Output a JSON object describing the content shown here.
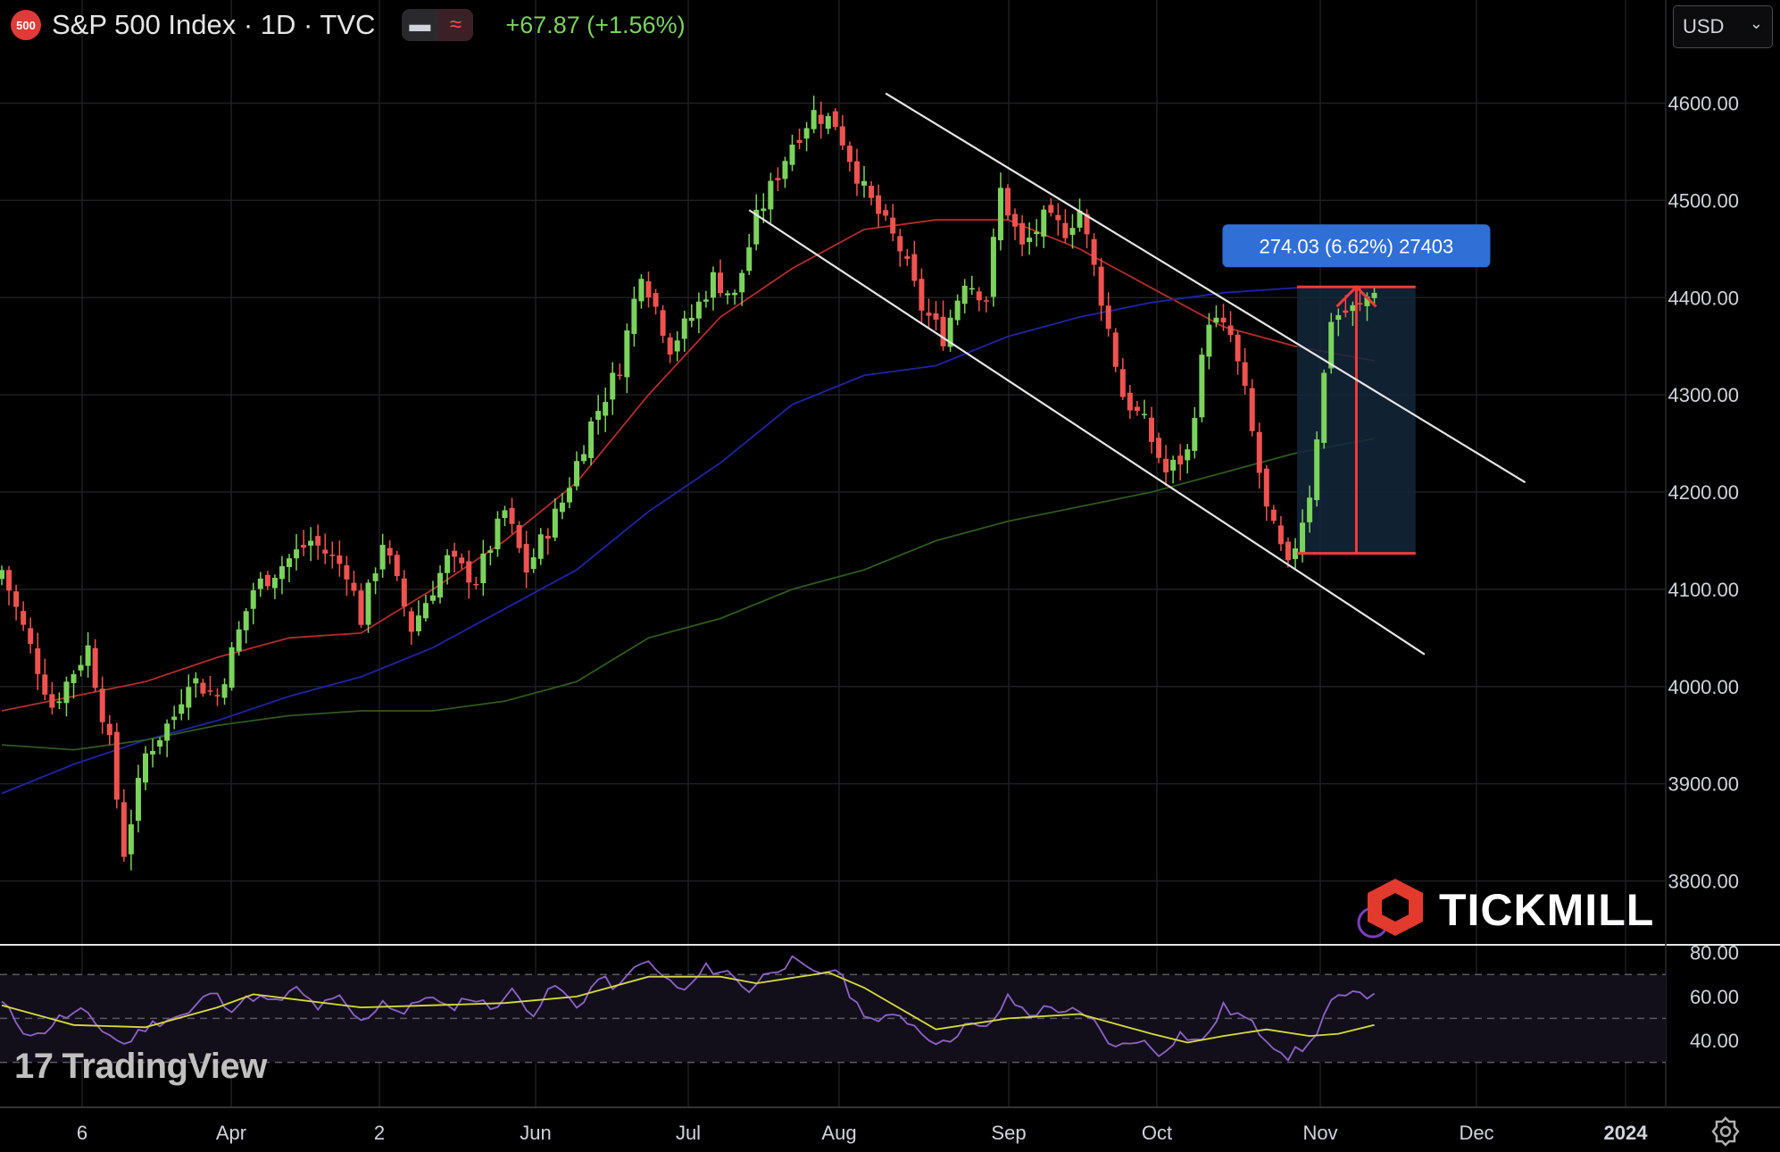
{
  "header": {
    "badge": "500",
    "symbol": "S&P 500 Index · 1D · TVC",
    "toggle_a": "▬",
    "toggle_b": "≈",
    "change": "+67.87 (+1.56%)"
  },
  "currency": {
    "label": "USD",
    "chevron": "⌄"
  },
  "measure": {
    "label": "274.03 (6.62%) 27403"
  },
  "watermarks": {
    "tradingview": "TradingView",
    "tradingview_logo": "17",
    "tickmill": "TICKMILL"
  },
  "icons": {
    "settings": "settings-gear-icon"
  },
  "colors": {
    "background": "#000000",
    "grid": "#1f1f23",
    "up": "#7bd35d",
    "down": "#ef5350",
    "ma_red": "#b72c2c",
    "ma_blue": "#1f24a6",
    "ma_green": "#2f5a1f",
    "rsi": "#8e62c8",
    "rsi_signal": "#d9db3d",
    "channel": "#e6e6e6",
    "measure_fill": "#13273b",
    "measure_line": "#f23a3a",
    "label_bg": "#2f6fd6"
  },
  "chart_data": [
    {
      "type": "candlestick",
      "title": "S&P 500 Index · 1D · TVC",
      "price_ticks": [
        "4600.00",
        "4500.00",
        "4400.00",
        "4300.00",
        "4200.00",
        "4100.00",
        "4000.00",
        "3900.00",
        "3800.00"
      ],
      "ylim": [
        3740,
        4650
      ],
      "time_ticks": [
        "6",
        "Apr",
        "2",
        "Jun",
        "Jul",
        "Aug",
        "Sep",
        "Oct",
        "Nov",
        "Dec",
        "2024"
      ],
      "keypoints": [
        {
          "i": 0,
          "c": 4120
        },
        {
          "i": 7,
          "c": 3980
        },
        {
          "i": 12,
          "c": 4040
        },
        {
          "i": 15,
          "c": 3940
        },
        {
          "i": 17,
          "c": 3830
        },
        {
          "i": 20,
          "c": 3930
        },
        {
          "i": 24,
          "c": 3970
        },
        {
          "i": 26,
          "c": 4010
        },
        {
          "i": 30,
          "c": 3990
        },
        {
          "i": 35,
          "c": 4100
        },
        {
          "i": 43,
          "c": 4150
        },
        {
          "i": 48,
          "c": 4120
        },
        {
          "i": 50,
          "c": 4070
        },
        {
          "i": 53,
          "c": 4150
        },
        {
          "i": 57,
          "c": 4060
        },
        {
          "i": 62,
          "c": 4130
        },
        {
          "i": 66,
          "c": 4110
        },
        {
          "i": 70,
          "c": 4180
        },
        {
          "i": 73,
          "c": 4120
        },
        {
          "i": 78,
          "c": 4190
        },
        {
          "i": 82,
          "c": 4270
        },
        {
          "i": 86,
          "c": 4330
        },
        {
          "i": 89,
          "c": 4430
        },
        {
          "i": 93,
          "c": 4350
        },
        {
          "i": 96,
          "c": 4380
        },
        {
          "i": 99,
          "c": 4420
        },
        {
          "i": 102,
          "c": 4400
        },
        {
          "i": 105,
          "c": 4480
        },
        {
          "i": 110,
          "c": 4560
        },
        {
          "i": 113,
          "c": 4590
        },
        {
          "i": 116,
          "c": 4580
        },
        {
          "i": 120,
          "c": 4510
        },
        {
          "i": 125,
          "c": 4450
        },
        {
          "i": 128,
          "c": 4390
        },
        {
          "i": 131,
          "c": 4360
        },
        {
          "i": 134,
          "c": 4420
        },
        {
          "i": 137,
          "c": 4400
        },
        {
          "i": 139,
          "c": 4510
        },
        {
          "i": 142,
          "c": 4450
        },
        {
          "i": 145,
          "c": 4480
        },
        {
          "i": 148,
          "c": 4470
        },
        {
          "i": 150,
          "c": 4490
        },
        {
          "i": 153,
          "c": 4400
        },
        {
          "i": 156,
          "c": 4300
        },
        {
          "i": 159,
          "c": 4270
        },
        {
          "i": 162,
          "c": 4220
        },
        {
          "i": 165,
          "c": 4240
        },
        {
          "i": 168,
          "c": 4380
        },
        {
          "i": 171,
          "c": 4360
        },
        {
          "i": 173,
          "c": 4300
        },
        {
          "i": 176,
          "c": 4180
        },
        {
          "i": 179,
          "c": 4120
        },
        {
          "i": 182,
          "c": 4200
        },
        {
          "i": 185,
          "c": 4380
        },
        {
          "i": 189,
          "c": 4390
        },
        {
          "i": 191,
          "c": 4411
        }
      ],
      "moving_averages": [
        {
          "name": "MA red",
          "color": "#b72c2c",
          "values": [
            {
              "i": 0,
              "v": 3975
            },
            {
              "i": 20,
              "v": 4005
            },
            {
              "i": 30,
              "v": 4030
            },
            {
              "i": 40,
              "v": 4050
            },
            {
              "i": 50,
              "v": 4055
            },
            {
              "i": 60,
              "v": 4100
            },
            {
              "i": 70,
              "v": 4150
            },
            {
              "i": 80,
              "v": 4210
            },
            {
              "i": 90,
              "v": 4300
            },
            {
              "i": 100,
              "v": 4380
            },
            {
              "i": 110,
              "v": 4430
            },
            {
              "i": 120,
              "v": 4470
            },
            {
              "i": 130,
              "v": 4480
            },
            {
              "i": 140,
              "v": 4480
            },
            {
              "i": 150,
              "v": 4450
            },
            {
              "i": 160,
              "v": 4410
            },
            {
              "i": 170,
              "v": 4370
            },
            {
              "i": 180,
              "v": 4350
            },
            {
              "i": 191,
              "v": 4335
            }
          ]
        },
        {
          "name": "MA blue",
          "color": "#1f24a6",
          "values": [
            {
              "i": 0,
              "v": 3890
            },
            {
              "i": 10,
              "v": 3920
            },
            {
              "i": 20,
              "v": 3945
            },
            {
              "i": 30,
              "v": 3965
            },
            {
              "i": 40,
              "v": 3990
            },
            {
              "i": 50,
              "v": 4010
            },
            {
              "i": 60,
              "v": 4040
            },
            {
              "i": 70,
              "v": 4080
            },
            {
              "i": 80,
              "v": 4120
            },
            {
              "i": 90,
              "v": 4180
            },
            {
              "i": 100,
              "v": 4230
            },
            {
              "i": 110,
              "v": 4290
            },
            {
              "i": 120,
              "v": 4320
            },
            {
              "i": 130,
              "v": 4330
            },
            {
              "i": 140,
              "v": 4360
            },
            {
              "i": 150,
              "v": 4380
            },
            {
              "i": 160,
              "v": 4395
            },
            {
              "i": 170,
              "v": 4405
            },
            {
              "i": 180,
              "v": 4410
            },
            {
              "i": 191,
              "v": 4410
            }
          ]
        },
        {
          "name": "MA green",
          "color": "#2f5a1f",
          "values": [
            {
              "i": 0,
              "v": 3940
            },
            {
              "i": 10,
              "v": 3935
            },
            {
              "i": 20,
              "v": 3945
            },
            {
              "i": 30,
              "v": 3960
            },
            {
              "i": 40,
              "v": 3970
            },
            {
              "i": 50,
              "v": 3975
            },
            {
              "i": 60,
              "v": 3975
            },
            {
              "i": 70,
              "v": 3985
            },
            {
              "i": 80,
              "v": 4005
            },
            {
              "i": 90,
              "v": 4050
            },
            {
              "i": 100,
              "v": 4070
            },
            {
              "i": 110,
              "v": 4100
            },
            {
              "i": 120,
              "v": 4120
            },
            {
              "i": 130,
              "v": 4150
            },
            {
              "i": 140,
              "v": 4170
            },
            {
              "i": 150,
              "v": 4185
            },
            {
              "i": 160,
              "v": 4200
            },
            {
              "i": 170,
              "v": 4220
            },
            {
              "i": 180,
              "v": 4240
            },
            {
              "i": 191,
              "v": 4255
            }
          ]
        }
      ],
      "channel": {
        "upper": {
          "from": {
            "i": 123,
            "v": 4610
          },
          "to": {
            "i": 212,
            "v": 4210
          }
        },
        "lower": {
          "from": {
            "i": 104,
            "v": 4490
          },
          "to": {
            "i": 198,
            "v": 4033
          }
        }
      },
      "measure": {
        "from_i": 181,
        "to_i": 196,
        "low": 4137,
        "high": 4411,
        "change": 274.03,
        "percent": 6.62,
        "label": "274.03 (6.62%) 27403"
      },
      "last_change": "+67.87 (+1.56%)"
    },
    {
      "type": "line",
      "title": "RSI",
      "ticks": [
        "80.00",
        "60.00",
        "40.00"
      ],
      "ylim": [
        29,
        82
      ],
      "bands": [
        70,
        50,
        30
      ],
      "series": [
        {
          "key": "rsi",
          "color": "#8e62c8",
          "values": [
            {
              "i": 0,
              "v": 57
            },
            {
              "i": 3,
              "v": 45
            },
            {
              "i": 5,
              "v": 42
            },
            {
              "i": 8,
              "v": 50
            },
            {
              "i": 11,
              "v": 53
            },
            {
              "i": 14,
              "v": 45
            },
            {
              "i": 17,
              "v": 38
            },
            {
              "i": 20,
              "v": 46
            },
            {
              "i": 23,
              "v": 50
            },
            {
              "i": 26,
              "v": 52
            },
            {
              "i": 29,
              "v": 62
            },
            {
              "i": 32,
              "v": 55
            },
            {
              "i": 35,
              "v": 60
            },
            {
              "i": 38,
              "v": 57
            },
            {
              "i": 41,
              "v": 63
            },
            {
              "i": 44,
              "v": 55
            },
            {
              "i": 47,
              "v": 59
            },
            {
              "i": 50,
              "v": 48
            },
            {
              "i": 53,
              "v": 58
            },
            {
              "i": 56,
              "v": 52
            },
            {
              "i": 59,
              "v": 61
            },
            {
              "i": 62,
              "v": 54
            },
            {
              "i": 65,
              "v": 60
            },
            {
              "i": 68,
              "v": 55
            },
            {
              "i": 71,
              "v": 62
            },
            {
              "i": 74,
              "v": 53
            },
            {
              "i": 77,
              "v": 65
            },
            {
              "i": 80,
              "v": 55
            },
            {
              "i": 83,
              "v": 68
            },
            {
              "i": 86,
              "v": 64
            },
            {
              "i": 89,
              "v": 77
            },
            {
              "i": 92,
              "v": 69
            },
            {
              "i": 95,
              "v": 62
            },
            {
              "i": 98,
              "v": 73
            },
            {
              "i": 101,
              "v": 71
            },
            {
              "i": 104,
              "v": 63
            },
            {
              "i": 107,
              "v": 72
            },
            {
              "i": 110,
              "v": 76
            },
            {
              "i": 113,
              "v": 70
            },
            {
              "i": 116,
              "v": 73
            },
            {
              "i": 119,
              "v": 56
            },
            {
              "i": 122,
              "v": 48
            },
            {
              "i": 125,
              "v": 52
            },
            {
              "i": 128,
              "v": 44
            },
            {
              "i": 131,
              "v": 38
            },
            {
              "i": 134,
              "v": 47
            },
            {
              "i": 137,
              "v": 45
            },
            {
              "i": 140,
              "v": 59
            },
            {
              "i": 143,
              "v": 52
            },
            {
              "i": 146,
              "v": 55
            },
            {
              "i": 149,
              "v": 53
            },
            {
              "i": 152,
              "v": 48
            },
            {
              "i": 155,
              "v": 36
            },
            {
              "i": 158,
              "v": 41
            },
            {
              "i": 161,
              "v": 34
            },
            {
              "i": 164,
              "v": 43
            },
            {
              "i": 167,
              "v": 39
            },
            {
              "i": 170,
              "v": 55
            },
            {
              "i": 173,
              "v": 50
            },
            {
              "i": 176,
              "v": 41
            },
            {
              "i": 179,
              "v": 33
            },
            {
              "i": 182,
              "v": 38
            },
            {
              "i": 185,
              "v": 58
            },
            {
              "i": 188,
              "v": 60
            },
            {
              "i": 191,
              "v": 62
            }
          ]
        },
        {
          "key": "signal",
          "color": "#d9db3d",
          "values": [
            {
              "i": 0,
              "v": 56
            },
            {
              "i": 10,
              "v": 47
            },
            {
              "i": 20,
              "v": 46
            },
            {
              "i": 30,
              "v": 55
            },
            {
              "i": 35,
              "v": 61
            },
            {
              "i": 40,
              "v": 59
            },
            {
              "i": 50,
              "v": 55
            },
            {
              "i": 60,
              "v": 56
            },
            {
              "i": 70,
              "v": 57
            },
            {
              "i": 80,
              "v": 60
            },
            {
              "i": 90,
              "v": 69
            },
            {
              "i": 100,
              "v": 69
            },
            {
              "i": 105,
              "v": 66
            },
            {
              "i": 115,
              "v": 71
            },
            {
              "i": 120,
              "v": 64
            },
            {
              "i": 130,
              "v": 45
            },
            {
              "i": 140,
              "v": 50
            },
            {
              "i": 150,
              "v": 52
            },
            {
              "i": 160,
              "v": 43
            },
            {
              "i": 165,
              "v": 39
            },
            {
              "i": 170,
              "v": 42
            },
            {
              "i": 176,
              "v": 45
            },
            {
              "i": 182,
              "v": 42
            },
            {
              "i": 186,
              "v": 43
            },
            {
              "i": 191,
              "v": 47
            }
          ]
        }
      ]
    }
  ]
}
